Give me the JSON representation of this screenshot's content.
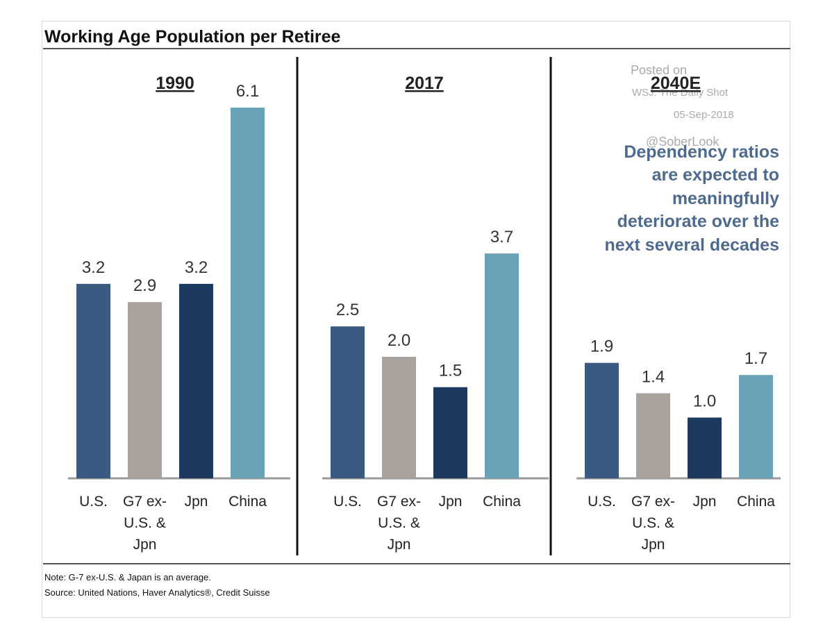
{
  "chart_data": {
    "type": "bar",
    "title": "Working Age Population per Retiree",
    "categories": [
      [
        "U.S."
      ],
      [
        "G7 ex-",
        "U.S. &",
        "Jpn"
      ],
      [
        "Jpn"
      ],
      [
        "China"
      ]
    ],
    "category_colors": [
      "#3a5a82",
      "#aaa29d",
      "#1c3a60",
      "#6aa2b8"
    ],
    "panels": [
      {
        "label": "1990",
        "values": [
          3.2,
          2.9,
          3.2,
          6.1
        ],
        "value_labels": [
          "3.2",
          "2.9",
          "3.2",
          "6.1"
        ]
      },
      {
        "label": "2017",
        "values": [
          2.5,
          2.0,
          1.5,
          3.7
        ],
        "value_labels": [
          "2.5",
          "2.0",
          "1.5",
          "3.7"
        ]
      },
      {
        "label": "2040E",
        "values": [
          1.9,
          1.4,
          1.0,
          1.7
        ],
        "value_labels": [
          "1.9",
          "1.4",
          "1.0",
          "1.7"
        ]
      }
    ],
    "ylim": [
      0,
      6.5
    ],
    "grid": false,
    "annotation": [
      "Dependency ratios",
      "are expected to",
      "meaningfully",
      "deteriorate over the",
      "next several decades"
    ],
    "annotation_color": "#4f6a8f"
  },
  "watermark": [
    "Posted on",
    "WSJ: The Daily Shot",
    "05-Sep-2018",
    "@SoberLook"
  ],
  "footnotes": {
    "note": "Note: G-7 ex-U.S. & Japan is an average.",
    "source": "Source: United Nations, Haver Analytics®, Credit Suisse"
  }
}
